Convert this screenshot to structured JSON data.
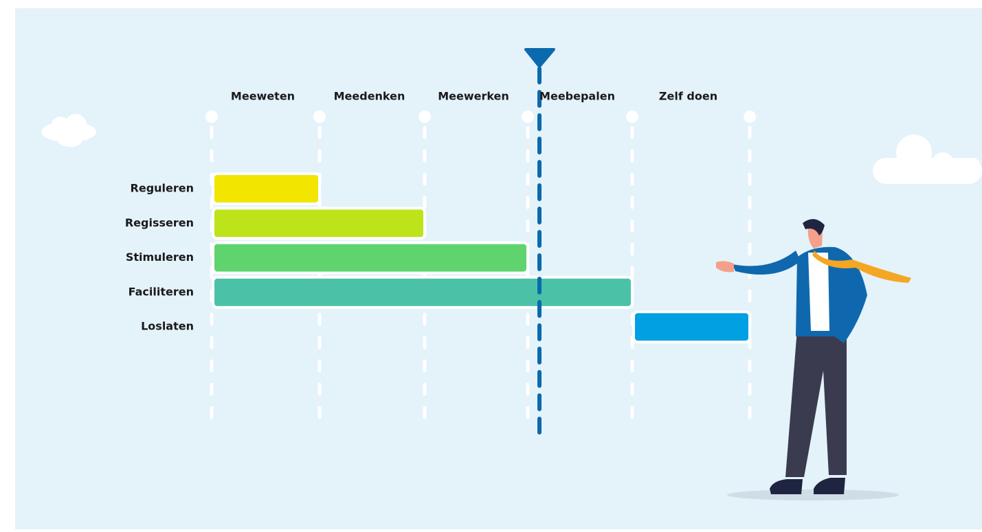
{
  "columns": [
    "Meeweten",
    "Meedenken",
    "Meewerken",
    "Meebepalen",
    "Zelf doen"
  ],
  "rows": [
    {
      "label": "Reguleren",
      "from": 0,
      "to": 1,
      "color": "#f2e500"
    },
    {
      "label": "Regisseren",
      "from": 0,
      "to": 2,
      "color": "#bde31a"
    },
    {
      "label": "Stimuleren",
      "from": 0,
      "to": 3,
      "color": "#5fd46e"
    },
    {
      "label": "Faciliteren",
      "from": 0,
      "to": 4,
      "color": "#4bc2a8"
    },
    {
      "label": "Loslaten",
      "from": 4,
      "to": 5,
      "color": "#00a0e3"
    }
  ]
}
